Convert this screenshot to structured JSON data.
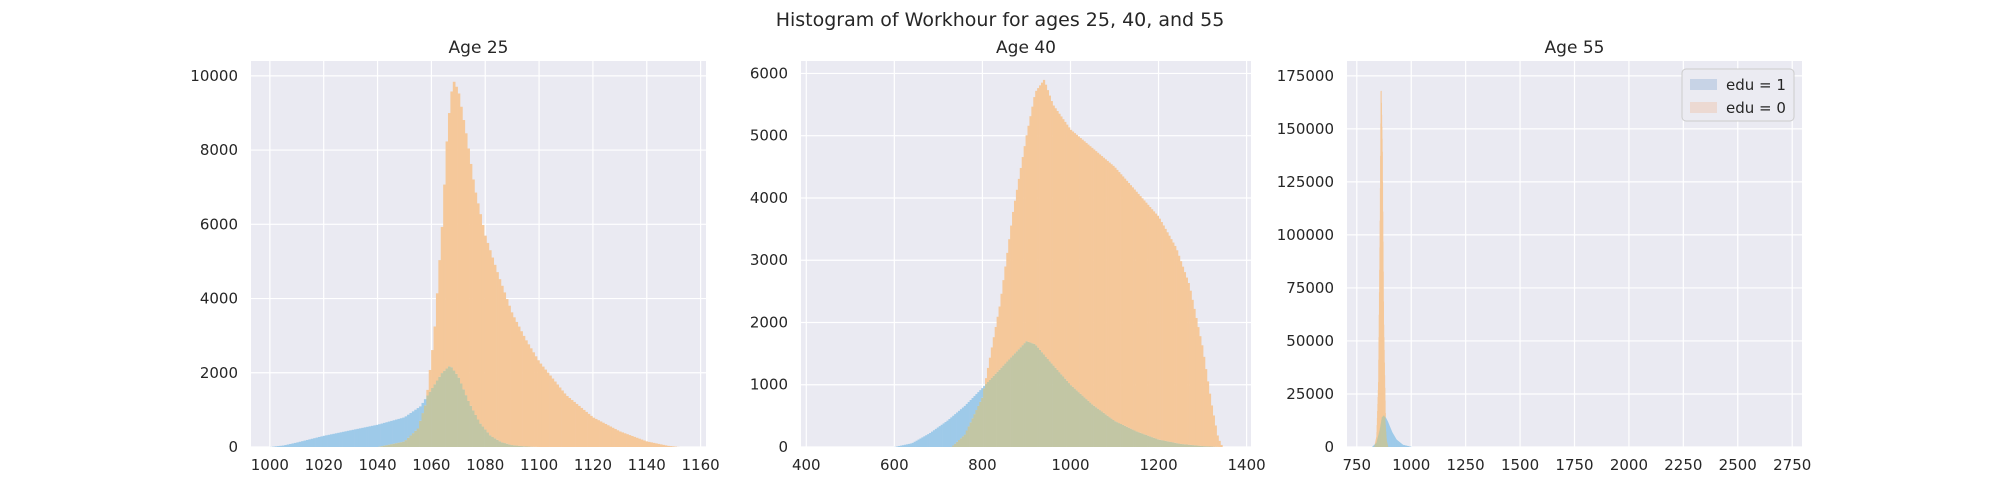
{
  "figure": {
    "title": "Histogram of Workhour for ages 25, 40, and 55"
  },
  "colors": {
    "panel_bg": "#eaeaf2",
    "grid": "#ffffff",
    "edu1": "#9ecae9",
    "edu0": "#f5c89a",
    "overlap": "#c2c6a4",
    "legend_edu1": "#c7d3e6",
    "legend_edu0": "#ecd9d2"
  },
  "chart_data": [
    {
      "type": "histogram",
      "title": "Age 25",
      "xlim": [
        993,
        1162
      ],
      "ylim": [
        0,
        10400
      ],
      "xticks": [
        1000,
        1020,
        1040,
        1060,
        1080,
        1100,
        1120,
        1140,
        1160
      ],
      "yticks": [
        0,
        2000,
        4000,
        6000,
        8000,
        10000
      ],
      "grid": true,
      "legend": null,
      "series": [
        {
          "name": "edu = 1",
          "color": "#9ecae9",
          "x": [
            1000,
            1005,
            1010,
            1020,
            1030,
            1040,
            1050,
            1056,
            1060,
            1064,
            1067,
            1070,
            1074,
            1078,
            1082,
            1086,
            1090,
            1095,
            1100
          ],
          "y": [
            0,
            40,
            120,
            300,
            450,
            600,
            800,
            1100,
            1550,
            2000,
            2200,
            1900,
            1200,
            650,
            300,
            130,
            50,
            15,
            0
          ]
        },
        {
          "name": "edu = 0",
          "color": "#f5c89a",
          "x": [
            1040,
            1050,
            1055,
            1058,
            1061,
            1064,
            1066,
            1068,
            1070,
            1073,
            1076,
            1080,
            1085,
            1090,
            1095,
            1100,
            1110,
            1120,
            1130,
            1140,
            1148,
            1152
          ],
          "y": [
            0,
            150,
            500,
            1200,
            3000,
            6000,
            8600,
            9900,
            9600,
            8400,
            7000,
            5700,
            4600,
            3600,
            2900,
            2300,
            1400,
            800,
            420,
            150,
            30,
            0
          ]
        }
      ]
    },
    {
      "type": "histogram",
      "title": "Age 40",
      "xlim": [
        388,
        1410
      ],
      "ylim": [
        0,
        6200
      ],
      "xticks": [
        400,
        600,
        800,
        1000,
        1200,
        1400
      ],
      "yticks": [
        0,
        1000,
        2000,
        3000,
        4000,
        5000,
        6000
      ],
      "grid": true,
      "legend": null,
      "series": [
        {
          "name": "edu = 1",
          "color": "#9ecae9",
          "x": [
            600,
            640,
            680,
            720,
            760,
            800,
            840,
            880,
            900,
            920,
            950,
            1000,
            1050,
            1100,
            1150,
            1200,
            1250,
            1300,
            1340
          ],
          "y": [
            0,
            60,
            220,
            420,
            660,
            950,
            1250,
            1550,
            1700,
            1650,
            1400,
            1000,
            680,
            420,
            250,
            120,
            50,
            15,
            0
          ]
        },
        {
          "name": "edu = 0",
          "color": "#f5c89a",
          "x": [
            730,
            760,
            800,
            840,
            870,
            900,
            920,
            940,
            960,
            1000,
            1050,
            1100,
            1150,
            1200,
            1240,
            1270,
            1300,
            1320,
            1335,
            1345
          ],
          "y": [
            0,
            200,
            800,
            2300,
            3800,
            5000,
            5700,
            5900,
            5500,
            5100,
            4800,
            4500,
            4100,
            3700,
            3200,
            2600,
            1600,
            700,
            150,
            0
          ]
        }
      ]
    },
    {
      "type": "histogram",
      "title": "Age 55",
      "xlim": [
        705,
        2795
      ],
      "ylim": [
        0,
        182000
      ],
      "xticks": [
        750,
        1000,
        1250,
        1500,
        1750,
        2000,
        2250,
        2500,
        2750
      ],
      "yticks": [
        0,
        25000,
        50000,
        75000,
        100000,
        125000,
        150000,
        175000
      ],
      "grid": true,
      "legend": "top-right",
      "series": [
        {
          "name": "edu = 1",
          "color": "#9ecae9",
          "x": [
            820,
            840,
            855,
            865,
            875,
            890,
            910,
            930,
            960,
            1000
          ],
          "y": [
            0,
            2000,
            8000,
            14000,
            15000,
            12000,
            7000,
            3500,
            1000,
            0
          ]
        },
        {
          "name": "edu = 0",
          "color": "#f5c89a",
          "x": [
            830,
            840,
            848,
            855,
            860,
            866,
            872,
            880,
            888,
            895
          ],
          "y": [
            0,
            5000,
            30000,
            100000,
            172000,
            140000,
            60000,
            15000,
            3000,
            0
          ]
        }
      ]
    }
  ],
  "legend": {
    "items": [
      {
        "label": "edu = 1",
        "color": "#c7d3e6"
      },
      {
        "label": "edu = 0",
        "color": "#ecd9d2"
      }
    ]
  }
}
